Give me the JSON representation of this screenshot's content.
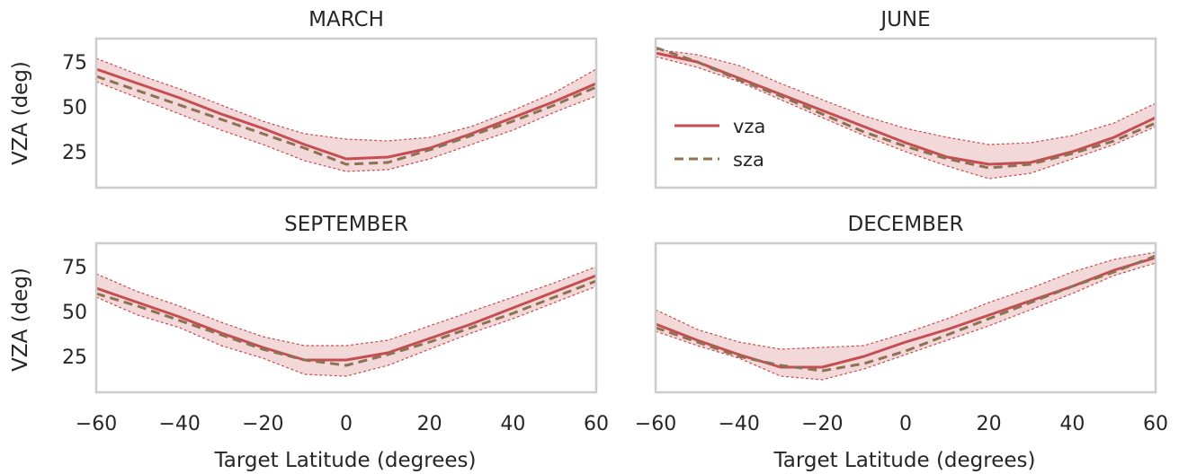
{
  "colors": {
    "vza": "#c44e52",
    "vza_band": "#c44e52",
    "sza": "#8c7152",
    "frame": "#cccccc"
  },
  "chart_data": {
    "type": "line",
    "layout": "2x2 subplots, shared axes",
    "xlim": [
      -60,
      60
    ],
    "ylim": [
      5,
      88
    ],
    "xticks": [
      -60,
      -40,
      -20,
      0,
      20,
      40,
      60
    ],
    "yticks": [
      25,
      50,
      75
    ],
    "xlabel": "Target Latitude (degrees)",
    "ylabel": "VZA (deg)",
    "grid": false,
    "legend": {
      "panel": "JUNE",
      "placement": "center-left",
      "entries": [
        "vza",
        "sza"
      ]
    },
    "x": [
      -60,
      -50,
      -40,
      -30,
      -20,
      -10,
      0,
      10,
      20,
      30,
      40,
      50,
      60
    ],
    "panels": [
      {
        "title": "MARCH",
        "series": [
          {
            "name": "vza",
            "style": "solid",
            "values": [
              71,
              63,
              55,
              46,
              38,
              29,
              21,
              22,
              27,
              35,
              44,
              53,
              63
            ]
          },
          {
            "name": "sza",
            "style": "dashed",
            "values": [
              67,
              59,
              51,
              43,
              35,
              27,
              18,
              19,
              26,
              34,
              42,
              51,
              61
            ]
          }
        ],
        "band_upper": [
          77,
          68,
          60,
          51,
          42,
          35,
          32,
          31,
          33,
          39,
          48,
          58,
          71
        ],
        "band_lower": [
          64,
          55,
          46,
          37,
          29,
          20,
          14,
          15,
          21,
          29,
          37,
          47,
          56
        ]
      },
      {
        "title": "JUNE",
        "series": [
          {
            "name": "vza",
            "style": "solid",
            "values": [
              80,
              75,
              66,
              57,
              48,
              39,
              30,
              22,
              18,
              19,
              25,
              33,
              44
            ]
          },
          {
            "name": "sza",
            "style": "dashed",
            "values": [
              83,
              75,
              65,
              56,
              46,
              36,
              28,
              21,
              16,
              18,
              24,
              31,
              41
            ]
          }
        ],
        "band_upper": [
          82,
          79,
          73,
          63,
          54,
          45,
          38,
          33,
          29,
          30,
          34,
          41,
          52
        ],
        "band_lower": [
          78,
          72,
          64,
          54,
          44,
          34,
          25,
          17,
          10,
          13,
          21,
          29,
          39
        ]
      },
      {
        "title": "SEPTEMBER",
        "series": [
          {
            "name": "vza",
            "style": "solid",
            "values": [
              63,
              55,
              47,
              38,
              30,
              23,
              23,
              27,
              35,
              43,
              52,
              61,
              70
            ]
          },
          {
            "name": "sza",
            "style": "dashed",
            "values": [
              60,
              53,
              45,
              37,
              29,
              23,
              20,
              26,
              33,
              41,
              49,
              58,
              67
            ]
          }
        ],
        "band_upper": [
          71,
          61,
          53,
          44,
          36,
          31,
          31,
          34,
          42,
          50,
          58,
          66,
          75
        ],
        "band_lower": [
          58,
          48,
          41,
          31,
          24,
          15,
          14,
          20,
          29,
          38,
          46,
          55,
          64
        ]
      },
      {
        "title": "DECEMBER",
        "series": [
          {
            "name": "vza",
            "style": "solid",
            "values": [
              43,
              34,
              26,
              19,
              19,
              25,
              33,
              40,
              48,
              56,
              64,
              73,
              80
            ]
          },
          {
            "name": "sza",
            "style": "dashed",
            "values": [
              41,
              33,
              25,
              20,
              17,
              21,
              28,
              37,
              46,
              55,
              64,
              72,
              81
            ]
          }
        ],
        "band_upper": [
          51,
          40,
          33,
          29,
          30,
          31,
          38,
          46,
          55,
          63,
          72,
          79,
          83
        ],
        "band_lower": [
          39,
          31,
          24,
          14,
          12,
          18,
          26,
          34,
          42,
          51,
          60,
          70,
          77
        ]
      }
    ]
  }
}
